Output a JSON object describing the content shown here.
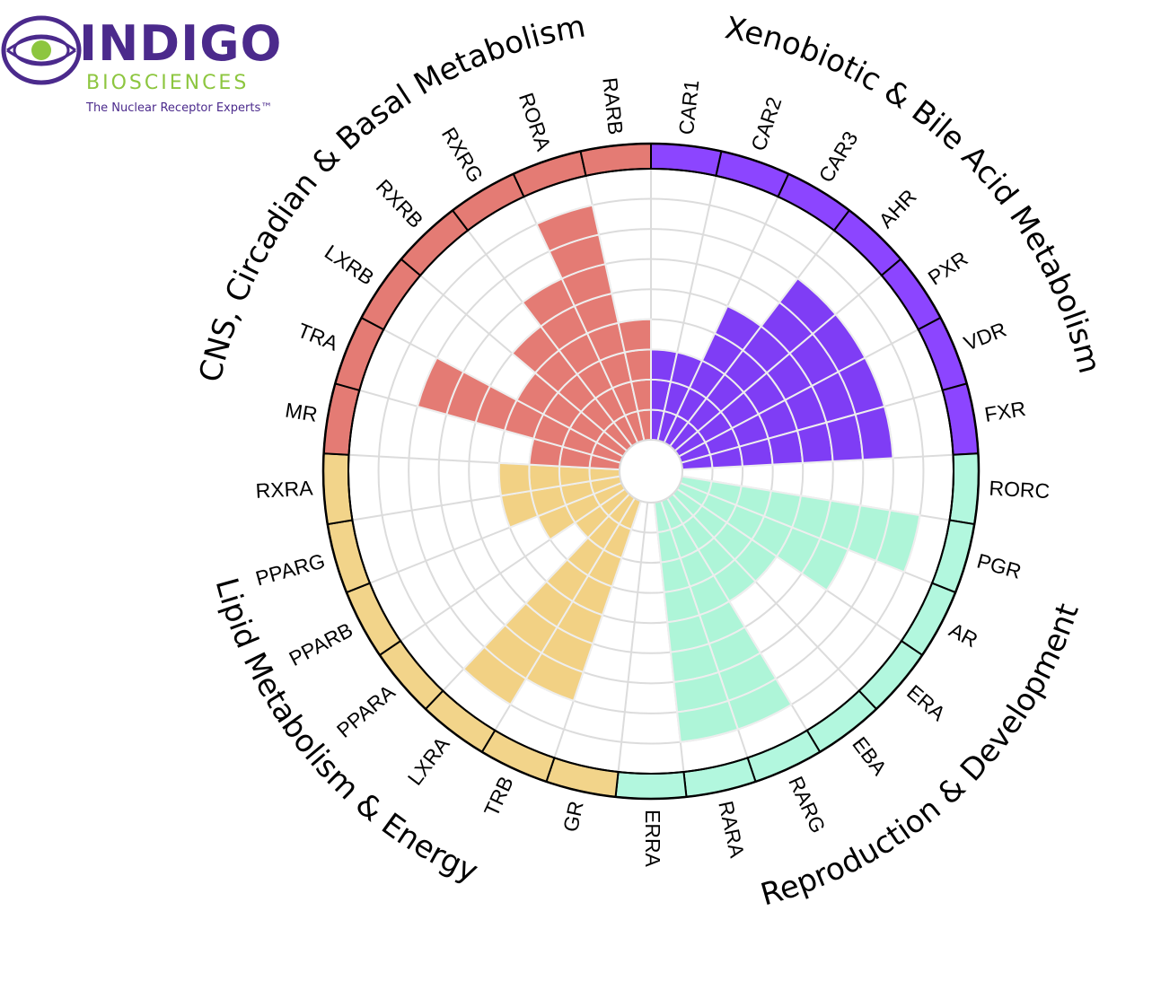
{
  "logo": {
    "name": "INDIGO",
    "sub": "BIOSCIENCES",
    "tagline": "The Nuclear Receptor Experts™"
  },
  "chart_data": {
    "type": "polar-bar",
    "rings": 9,
    "max": 9,
    "groups": [
      {
        "name": "Xenobiotic & Bile Acid Metabolism",
        "color": "#7f3df5",
        "ring_color": "#8c45ff"
      },
      {
        "name": "Reproduction & Development",
        "color": "#aef5d8",
        "ring_color": "#b2f7de"
      },
      {
        "name": "Lipid Metabolism & Energy",
        "color": "#f2d184",
        "ring_color": "#f2d48a"
      },
      {
        "name": "CNS, Circadian & Basal Metabolism",
        "color": "#e47b74",
        "ring_color": "#e47b74"
      }
    ],
    "categories": [
      {
        "label": "CAR1",
        "group": 0,
        "value": 3
      },
      {
        "label": "CAR2",
        "group": 0,
        "value": 3
      },
      {
        "label": "CAR3",
        "group": 0,
        "value": 5
      },
      {
        "label": "AHR",
        "group": 0,
        "value": 7
      },
      {
        "label": "PXR",
        "group": 0,
        "value": 7
      },
      {
        "label": "VDR",
        "group": 0,
        "value": 7
      },
      {
        "label": "FXR",
        "group": 0,
        "value": 7
      },
      {
        "label": "RORC",
        "group": 1,
        "value": 0
      },
      {
        "label": "PGR",
        "group": 1,
        "value": 8
      },
      {
        "label": "AR",
        "group": 1,
        "value": 6
      },
      {
        "label": "ERA",
        "group": 1,
        "value": 4
      },
      {
        "label": "EBA",
        "group": 1,
        "value": 4
      },
      {
        "label": "RARG",
        "group": 1,
        "value": 8
      },
      {
        "label": "RARA",
        "group": 1,
        "value": 8
      },
      {
        "label": "ERRA",
        "group": 1,
        "value": 0
      },
      {
        "label": "GR",
        "group": 2,
        "value": 0
      },
      {
        "label": "TRB",
        "group": 2,
        "value": 7
      },
      {
        "label": "LXRA",
        "group": 2,
        "value": 8
      },
      {
        "label": "PPARA",
        "group": 2,
        "value": 2
      },
      {
        "label": "PPARB",
        "group": 2,
        "value": 3
      },
      {
        "label": "PPARG",
        "group": 2,
        "value": 4
      },
      {
        "label": "RXRA",
        "group": 2,
        "value": 4
      },
      {
        "label": "MR",
        "group": 3,
        "value": 3
      },
      {
        "label": "TRA",
        "group": 3,
        "value": 7
      },
      {
        "label": "LXRB",
        "group": 3,
        "value": 4
      },
      {
        "label": "RXRB",
        "group": 3,
        "value": 5
      },
      {
        "label": "RXRG",
        "group": 3,
        "value": 6
      },
      {
        "label": "RORA",
        "group": 3,
        "value": 8
      },
      {
        "label": "RARB",
        "group": 3,
        "value": 4
      }
    ]
  }
}
